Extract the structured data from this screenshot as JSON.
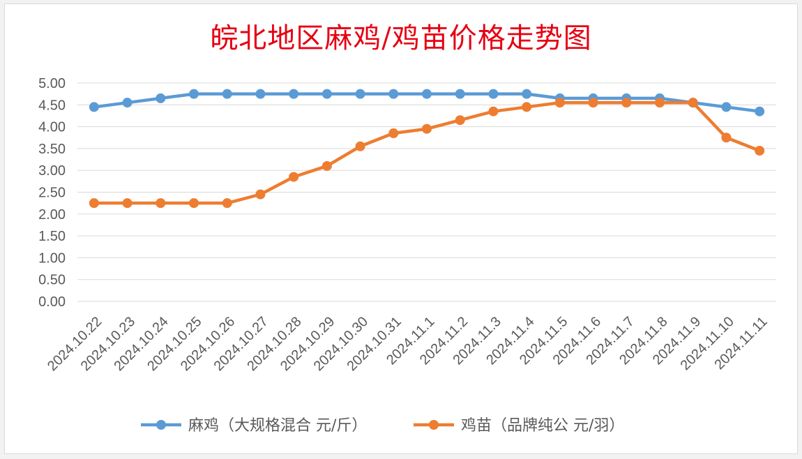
{
  "chart_data": {
    "type": "line",
    "title": "皖北地区麻鸡/鸡苗价格走势图",
    "xlabel": "",
    "ylabel": "",
    "ylim": [
      0,
      5
    ],
    "yticks": [
      "0.00",
      "0.50",
      "1.00",
      "1.50",
      "2.00",
      "2.50",
      "3.00",
      "3.50",
      "4.00",
      "4.50",
      "5.00"
    ],
    "categories": [
      "2024.10.22",
      "2024.10.23",
      "2024.10.24",
      "2024.10.25",
      "2024.10.26",
      "2024.10.27",
      "2024.10.28",
      "2024.10.29",
      "2024.10.30",
      "2024.10.31",
      "2024.11.1",
      "2024.11.2",
      "2024.11.3",
      "2024.11.4",
      "2024.11.5",
      "2024.11.6",
      "2024.11.7",
      "2024.11.8",
      "2024.11.9",
      "2024.11.10",
      "2024.11.11"
    ],
    "series": [
      {
        "name": "麻鸡（大规格混合 元/斤）",
        "color": "#5b9bd5",
        "values": [
          4.45,
          4.55,
          4.65,
          4.75,
          4.75,
          4.75,
          4.75,
          4.75,
          4.75,
          4.75,
          4.75,
          4.75,
          4.75,
          4.75,
          4.65,
          4.65,
          4.65,
          4.65,
          4.55,
          4.45,
          4.35
        ]
      },
      {
        "name": "鸡苗（品牌纯公 元/羽）",
        "color": "#ed7d31",
        "values": [
          2.25,
          2.25,
          2.25,
          2.25,
          2.25,
          2.45,
          2.85,
          3.1,
          3.55,
          3.85,
          3.95,
          4.15,
          4.35,
          4.45,
          4.55,
          4.55,
          4.55,
          4.55,
          4.55,
          3.75,
          3.45
        ]
      }
    ],
    "grid": true,
    "legend_position": "bottom"
  }
}
